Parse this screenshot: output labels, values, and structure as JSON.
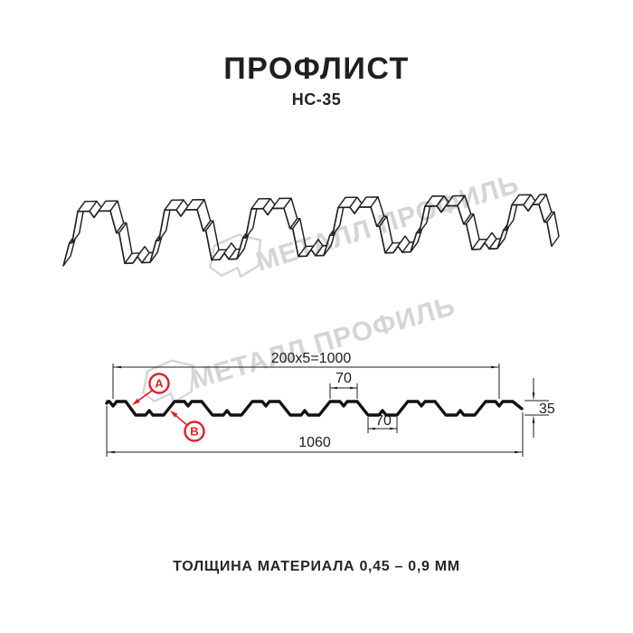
{
  "title": "ПРОФЛИСТ",
  "model": "НС-35",
  "watermark": {
    "text": "МЕТАЛЛ ПРОФИЛЬ"
  },
  "cross_section": {
    "dim_top": "200x5=1000",
    "dim_rib_top": "70",
    "dim_rib_bottom": "70",
    "dim_total": "1060",
    "dim_height": "35",
    "label_a": "A",
    "label_b": "B"
  },
  "caption": "ТОЛЩИНА МАТЕРИАЛА 0,45 – 0,9 ММ",
  "colors": {
    "line": "#1c1c1c",
    "accent_red": "#e31e24",
    "watermark": "#d5d5d5"
  }
}
